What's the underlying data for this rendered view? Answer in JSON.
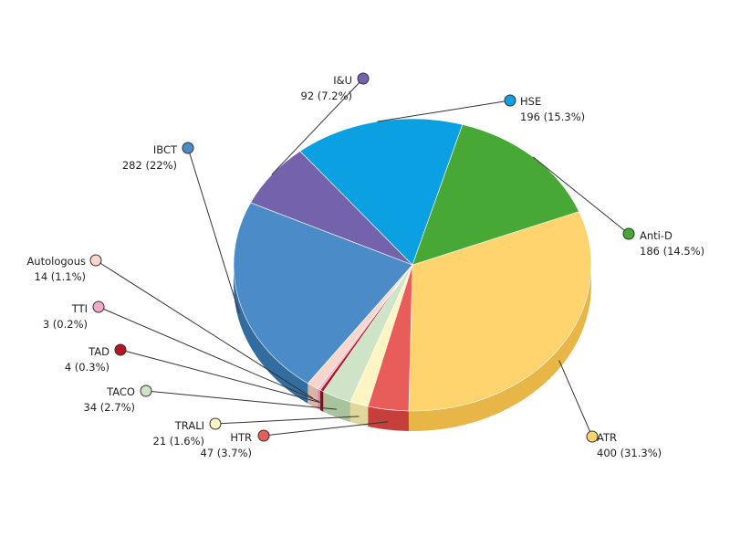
{
  "chart_data": {
    "type": "pie",
    "title": "",
    "slices": [
      {
        "key": "atr",
        "name": "ATR",
        "value": 400,
        "pct_label": "400  (31.3%)",
        "color": "#FFD46E",
        "dark": "#E8B547"
      },
      {
        "key": "htr",
        "name": "HTR",
        "value": 47,
        "pct_label": "47 (3.7%)",
        "color": "#E85C59",
        "dark": "#C63F3D"
      },
      {
        "key": "trali",
        "name": "TRALI",
        "value": 21,
        "pct_label": "21 (1.6%)",
        "color": "#FFF5C2",
        "dark": "#E2D79A"
      },
      {
        "key": "taco",
        "name": "TACO",
        "value": 34,
        "pct_label": "34 (2.7%)",
        "color": "#CFE3C6",
        "dark": "#A9C49C"
      },
      {
        "key": "tad",
        "name": "TAD",
        "value": 4,
        "pct_label": "4 (0.3%)",
        "color": "#B3161E",
        "dark": "#8A0F15"
      },
      {
        "key": "tti",
        "name": "TTI",
        "value": 3,
        "pct_label": "3 (0.2%)",
        "color": "#F3A9C9",
        "dark": "#D186A7"
      },
      {
        "key": "autologous",
        "name": "Autologous",
        "value": 14,
        "pct_label": "14 (1.1%)",
        "color": "#F9D6CC",
        "dark": "#DBB3A7"
      },
      {
        "key": "ibct",
        "name": "IBCT",
        "value": 282,
        "pct_label": "282 (22%)",
        "color": "#4A8BC8",
        "dark": "#336C9F"
      },
      {
        "key": "iu",
        "name": "I&U",
        "value": 92,
        "pct_label": "92 (7.2%)",
        "color": "#7463AC",
        "dark": "#57498A"
      },
      {
        "key": "hse",
        "name": "HSE",
        "value": 196,
        "pct_label": "196 (15.3%)",
        "color": "#0BA0E2",
        "dark": "#0781B7"
      },
      {
        "key": "antid",
        "name": "Anti-D",
        "value": 186,
        "pct_label": "186 (14.5%)",
        "color": "#47A836",
        "dark": "#34862A"
      }
    ]
  }
}
